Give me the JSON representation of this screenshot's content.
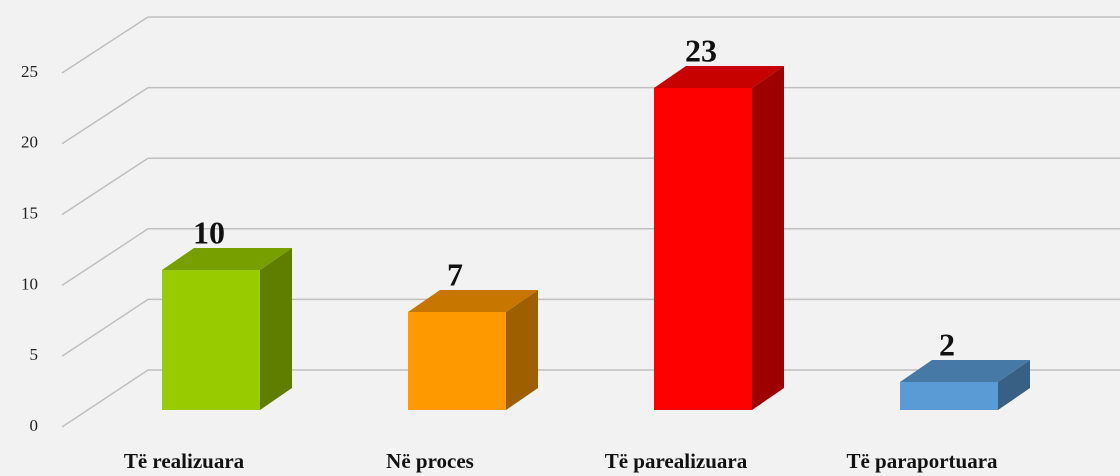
{
  "chart_data": {
    "type": "bar3d",
    "categories": [
      "Të realizuara",
      "Në proces",
      "Të parealizuara",
      "Të paraportuara"
    ],
    "values": [
      10,
      7,
      23,
      2
    ],
    "colors": [
      "#99cc00",
      "#ff9900",
      "#ff0000",
      "#5b9bd5"
    ],
    "ylim": [
      0,
      25
    ],
    "yticks": [
      0,
      5,
      10,
      15,
      20,
      25
    ],
    "grid": true
  }
}
